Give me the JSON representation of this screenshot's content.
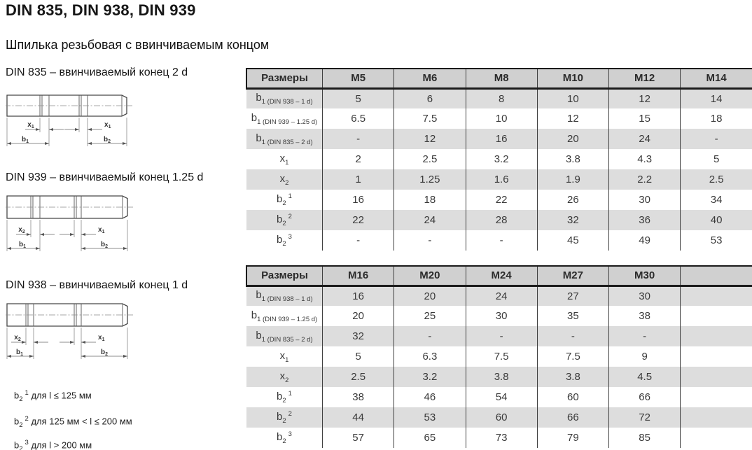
{
  "page": {
    "title": "DIN 835, DIN 938, DIN 939",
    "subtitle": "Шпилька резьбовая с ввинчиваемым концом"
  },
  "colors": {
    "header_bg": "#d0d0d0",
    "row_shaded_bg": "#dddddd",
    "border_heavy": "#1b1b1b",
    "grid_line": "#3f3f3f",
    "table_text": "#3a3a3a"
  },
  "diagrams": [
    {
      "caption": "DIN 835 – ввинчиваемый конец 2 d",
      "left_x": {
        "base": "x",
        "sub": "1"
      },
      "right_x": {
        "base": "x",
        "sub": "1"
      },
      "left_b": {
        "base": "b",
        "sub": "1"
      },
      "right_b": {
        "base": "b",
        "sub": "2"
      }
    },
    {
      "caption": "DIN 939 – ввинчиваемый конец 1.25 d",
      "left_x": {
        "base": "x",
        "sub": "2"
      },
      "right_x": {
        "base": "x",
        "sub": "1"
      },
      "left_b": {
        "base": "b",
        "sub": "1"
      },
      "right_b": {
        "base": "b",
        "sub": "2"
      }
    },
    {
      "caption": "DIN 938 – ввинчиваемый конец 1 d",
      "left_x": {
        "base": "x",
        "sub": "2"
      },
      "right_x": {
        "base": "x",
        "sub": "1"
      },
      "left_b": {
        "base": "b",
        "sub": "1"
      },
      "right_b": {
        "base": "b",
        "sub": "2"
      }
    }
  ],
  "footnotes": [
    {
      "base": "b",
      "sub": "2",
      "sup": "1",
      "text": "для l ≤ 125 мм"
    },
    {
      "base": "b",
      "sub": "2",
      "sup": "2",
      "text": "для 125 мм < l ≤ 200 мм"
    },
    {
      "base": "b",
      "sub": "2",
      "sup": "3",
      "text": "для l > 200 мм"
    }
  ],
  "tables": [
    {
      "headers": [
        "Размеры",
        "M5",
        "M6",
        "M8",
        "M10",
        "M12",
        "M14"
      ],
      "rows": [
        {
          "label": {
            "base": "b",
            "sub": "1 (DIN 938 – 1 d)"
          },
          "values": [
            "5",
            "6",
            "8",
            "10",
            "12",
            "14"
          ],
          "shaded": true
        },
        {
          "label": {
            "base": "b",
            "sub": "1 (DIN 939 – 1.25 d)"
          },
          "values": [
            "6.5",
            "7.5",
            "10",
            "12",
            "15",
            "18"
          ],
          "shaded": false
        },
        {
          "label": {
            "base": "b",
            "sub": "1 (DIN 835 – 2 d)"
          },
          "values": [
            "-",
            "12",
            "16",
            "20",
            "24",
            "-"
          ],
          "shaded": true
        },
        {
          "label": {
            "base": "x",
            "sub": "1"
          },
          "values": [
            "2",
            "2.5",
            "3.2",
            "3.8",
            "4.3",
            "5"
          ],
          "shaded": false
        },
        {
          "label": {
            "base": "x",
            "sub": "2"
          },
          "values": [
            "1",
            "1.25",
            "1.6",
            "1.9",
            "2.2",
            "2.5"
          ],
          "shaded": true
        },
        {
          "label": {
            "base": "b",
            "sub": "2",
            "sup": "1"
          },
          "values": [
            "16",
            "18",
            "22",
            "26",
            "30",
            "34"
          ],
          "shaded": false
        },
        {
          "label": {
            "base": "b",
            "sub": "2",
            "sup": "2"
          },
          "values": [
            "22",
            "24",
            "28",
            "32",
            "36",
            "40"
          ],
          "shaded": true
        },
        {
          "label": {
            "base": "b",
            "sub": "2",
            "sup": "3"
          },
          "values": [
            "-",
            "-",
            "-",
            "45",
            "49",
            "53"
          ],
          "shaded": false
        }
      ]
    },
    {
      "headers": [
        "Размеры",
        "M16",
        "M20",
        "M24",
        "M27",
        "M30",
        ""
      ],
      "rows": [
        {
          "label": {
            "base": "b",
            "sub": "1 (DIN 938 – 1 d)"
          },
          "values": [
            "16",
            "20",
            "24",
            "27",
            "30",
            ""
          ],
          "shaded": true
        },
        {
          "label": {
            "base": "b",
            "sub": "1 (DIN 939 – 1.25 d)"
          },
          "values": [
            "20",
            "25",
            "30",
            "35",
            "38",
            ""
          ],
          "shaded": false
        },
        {
          "label": {
            "base": "b",
            "sub": "1 (DIN 835 – 2 d)"
          },
          "values": [
            "32",
            "-",
            "-",
            "-",
            "-",
            ""
          ],
          "shaded": true
        },
        {
          "label": {
            "base": "x",
            "sub": "1"
          },
          "values": [
            "5",
            "6.3",
            "7.5",
            "7.5",
            "9",
            ""
          ],
          "shaded": false
        },
        {
          "label": {
            "base": "x",
            "sub": "2"
          },
          "values": [
            "2.5",
            "3.2",
            "3.8",
            "3.8",
            "4.5",
            ""
          ],
          "shaded": true
        },
        {
          "label": {
            "base": "b",
            "sub": "2",
            "sup": "1"
          },
          "values": [
            "38",
            "46",
            "54",
            "60",
            "66",
            ""
          ],
          "shaded": false
        },
        {
          "label": {
            "base": "b",
            "sub": "2",
            "sup": "2"
          },
          "values": [
            "44",
            "53",
            "60",
            "66",
            "72",
            ""
          ],
          "shaded": true
        },
        {
          "label": {
            "base": "b",
            "sub": "2",
            "sup": "3"
          },
          "values": [
            "57",
            "65",
            "73",
            "79",
            "85",
            ""
          ],
          "shaded": false
        }
      ]
    }
  ]
}
